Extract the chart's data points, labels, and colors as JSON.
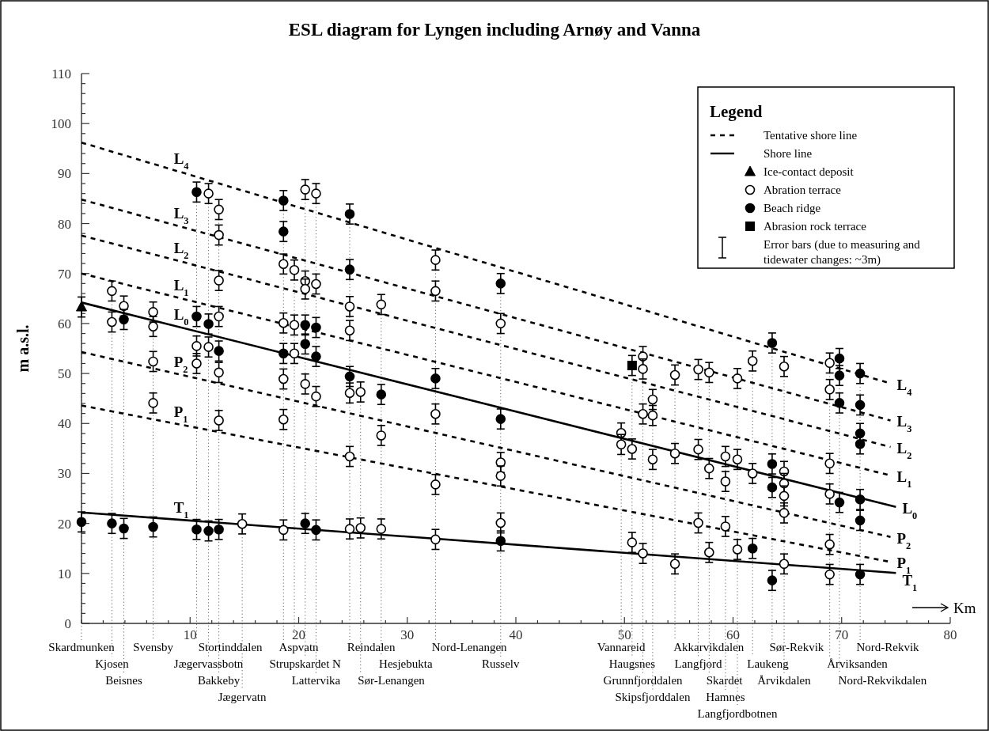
{
  "chart_data": {
    "type": "scatter",
    "title": "ESL diagram for Lyngen including Arnøy and Vanna",
    "xlabel": "Km",
    "ylabel": "m a.s.l.",
    "legend_title": "Legend",
    "legend": "top right",
    "annotations": [
      "Tentative shore line",
      "Shore line",
      "Error bars (due to measuring and tidewater changes: ~3m)"
    ],
    "xlim": [
      0,
      80
    ],
    "ylim": [
      0,
      110
    ],
    "xticks": [
      {
        "value": 0,
        "label": null
      },
      {
        "value": 2,
        "label": null
      },
      {
        "value": 4,
        "label": null
      },
      {
        "value": 6,
        "label": null
      },
      {
        "value": 8,
        "label": null
      },
      10,
      {
        "value": 12,
        "label": null
      },
      {
        "value": 14,
        "label": null
      },
      {
        "value": 16,
        "label": null
      },
      {
        "value": 18,
        "label": null
      },
      20,
      {
        "value": 22,
        "label": null
      },
      {
        "value": 24,
        "label": null
      },
      {
        "value": 26,
        "label": null
      },
      {
        "value": 28,
        "label": null
      },
      30,
      {
        "value": 32,
        "label": null
      },
      {
        "value": 34,
        "label": null
      },
      {
        "value": 36,
        "label": null
      },
      {
        "value": 38,
        "label": null
      },
      40,
      {
        "value": 42,
        "label": null
      },
      {
        "value": 44,
        "label": null
      },
      {
        "value": 46,
        "label": null
      },
      {
        "value": 48,
        "label": null
      },
      50,
      {
        "value": 52,
        "label": null
      },
      {
        "value": 54,
        "label": null
      },
      {
        "value": 56,
        "label": null
      },
      {
        "value": 58,
        "label": null
      },
      60,
      {
        "value": 62,
        "label": null
      },
      {
        "value": 64,
        "label": null
      },
      {
        "value": 66,
        "label": null
      },
      {
        "value": 68,
        "label": null
      },
      70,
      {
        "value": 72,
        "label": null
      },
      {
        "value": 74,
        "label": null
      },
      {
        "value": 76,
        "label": null
      },
      {
        "value": 78,
        "label": null
      },
      80
    ],
    "yticks": [
      0,
      {
        "value": 2,
        "label": null
      },
      {
        "value": 4,
        "label": null
      },
      {
        "value": 6,
        "label": null
      },
      {
        "value": 8,
        "label": null
      },
      10,
      {
        "value": 12,
        "label": null
      },
      {
        "value": 14,
        "label": null
      },
      {
        "value": 16,
        "label": null
      },
      {
        "value": 18,
        "label": null
      },
      20,
      {
        "value": 22,
        "label": null
      },
      {
        "value": 24,
        "label": null
      },
      {
        "value": 26,
        "label": null
      },
      {
        "value": 28,
        "label": null
      },
      30,
      {
        "value": 32,
        "label": null
      },
      {
        "value": 34,
        "label": null
      },
      {
        "value": 36,
        "label": null
      },
      {
        "value": 38,
        "label": null
      },
      40,
      {
        "value": 42,
        "label": null
      },
      {
        "value": 44,
        "label": null
      },
      {
        "value": 46,
        "label": null
      },
      {
        "value": 48,
        "label": null
      },
      50,
      {
        "value": 52,
        "label": null
      },
      {
        "value": 54,
        "label": null
      },
      {
        "value": 56,
        "label": null
      },
      {
        "value": 58,
        "label": null
      },
      60,
      {
        "value": 62,
        "label": null
      },
      {
        "value": 64,
        "label": null
      },
      {
        "value": 66,
        "label": null
      },
      {
        "value": 68,
        "label": null
      },
      70,
      {
        "value": 72,
        "label": null
      },
      {
        "value": 74,
        "label": null
      },
      {
        "value": 76,
        "label": null
      },
      {
        "value": 78,
        "label": null
      },
      80,
      {
        "value": 82,
        "label": null
      },
      {
        "value": 84,
        "label": null
      },
      {
        "value": 86,
        "label": null
      },
      {
        "value": 88,
        "label": null
      },
      90,
      {
        "value": 92,
        "label": null
      },
      {
        "value": 94,
        "label": null
      },
      {
        "value": 96,
        "label": null
      },
      {
        "value": 98,
        "label": null
      },
      100,
      {
        "value": 102,
        "label": null
      },
      {
        "value": 104,
        "label": null
      },
      {
        "value": 106,
        "label": null
      },
      {
        "value": 108,
        "label": null
      },
      110
    ],
    "series": [
      {
        "name": "L$_{4}$",
        "type": "line",
        "color": "#000000",
        "line_style": "dashed",
        "x": [
          0,
          74.5
        ],
        "values": [
          96.2,
          48.0
        ]
      },
      {
        "name": "L$_{3}$",
        "type": "line",
        "color": "#000000",
        "line_style": "dashed",
        "x": [
          0,
          74.5
        ],
        "values": [
          84.8,
          40.6
        ]
      },
      {
        "name": "L$_{2}$",
        "type": "line",
        "color": "#000000",
        "line_style": "dashed",
        "x": [
          0,
          74.5
        ],
        "values": [
          77.6,
          35.3
        ]
      },
      {
        "name": "L$_{1}$",
        "type": "line",
        "color": "#000000",
        "line_style": "dashed",
        "x": [
          0,
          74.5
        ],
        "values": [
          70.0,
          29.6
        ]
      },
      {
        "name": "L$_{0}$",
        "type": "line",
        "color": "#000000",
        "line_style": "solid",
        "x": [
          0,
          75
        ],
        "values": [
          64.2,
          23.3
        ]
      },
      {
        "name": "P$_{2}$",
        "type": "line",
        "color": "#000000",
        "line_style": "dashed",
        "x": [
          0,
          74.5
        ],
        "values": [
          54.3,
          17.3
        ]
      },
      {
        "name": "P$_{1}$",
        "type": "line",
        "color": "#000000",
        "line_style": "dashed",
        "x": [
          0,
          74.5
        ],
        "values": [
          43.6,
          12.3
        ]
      },
      {
        "name": "T$_{1}$",
        "type": "line",
        "color": "#000000",
        "line_style": "solid",
        "x": [
          0,
          75
        ],
        "values": [
          22.2,
          10.1
        ]
      },
      {
        "name": "Ice-contact deposit",
        "marker": "triangle",
        "color": "#000000",
        "x": [
          0
        ],
        "values": [
          63.3
        ],
        "errors": [
          2
        ]
      },
      {
        "name": "Abration terrace",
        "marker": "circle",
        "color": "#ffffff",
        "x": [
          2.8,
          2.8,
          3.9,
          6.6,
          6.6,
          6.6,
          6.6,
          10.6,
          10.6,
          11.7,
          11.7,
          12.65,
          12.65,
          12.65,
          12.65,
          12.65,
          12.65,
          14.8,
          18.6,
          18.6,
          18.6,
          18.6,
          18.6,
          19.6,
          19.6,
          19.6,
          20.6,
          20.6,
          20.6,
          20.6,
          21.6,
          21.6,
          21.6,
          24.7,
          24.7,
          24.7,
          24.7,
          24.7,
          25.7,
          25.7,
          27.6,
          27.6,
          27.6,
          32.6,
          32.6,
          32.6,
          32.6,
          32.6,
          38.6,
          38.6,
          38.6,
          38.6,
          49.7,
          49.7,
          50.7,
          50.7,
          51.7,
          51.7,
          51.7,
          51.7,
          52.6,
          52.6,
          52.6,
          54.65,
          54.65,
          54.65,
          56.8,
          56.8,
          56.8,
          57.8,
          57.8,
          57.8,
          59.3,
          59.3,
          59.3,
          60.4,
          60.4,
          60.4,
          61.8,
          61.8,
          64.7,
          64.7,
          64.7,
          64.7,
          64.7,
          64.7,
          68.9,
          68.9,
          68.9,
          68.9,
          68.9,
          68.9
        ],
        "values": [
          66.5,
          60.3,
          63.5,
          62.3,
          59.4,
          52.4,
          44.1,
          55.5,
          52.0,
          86.0,
          55.3,
          82.8,
          77.7,
          68.6,
          61.4,
          50.2,
          40.6,
          19.9,
          71.9,
          60.1,
          48.9,
          40.8,
          18.7,
          70.7,
          59.7,
          54.0,
          86.8,
          68.5,
          66.9,
          47.9,
          86.0,
          67.9,
          45.4,
          63.4,
          58.6,
          46.1,
          33.4,
          18.9,
          46.3,
          19.1,
          63.8,
          37.6,
          18.9,
          72.7,
          66.5,
          41.9,
          27.8,
          16.8,
          60.0,
          32.2,
          29.5,
          20.1,
          38.1,
          35.8,
          34.9,
          16.2,
          53.4,
          50.9,
          41.9,
          14.0,
          44.8,
          41.6,
          32.8,
          49.7,
          34.0,
          11.9,
          50.8,
          34.8,
          20.1,
          50.2,
          31.0,
          14.2,
          33.4,
          28.4,
          19.4,
          49.0,
          32.8,
          14.8,
          52.5,
          30.0,
          51.4,
          30.4,
          28.0,
          25.5,
          22.1,
          11.9,
          52.1,
          46.8,
          32.0,
          25.9,
          15.8,
          9.8
        ],
        "errors": [
          2,
          2,
          2,
          2,
          2,
          2,
          2,
          2,
          2,
          2,
          2,
          2,
          2,
          2,
          2,
          2,
          2,
          2,
          2,
          2,
          2,
          2,
          2,
          2,
          2,
          2,
          2,
          2,
          2,
          2,
          2,
          2,
          2,
          2,
          2,
          2,
          2,
          2,
          2,
          2,
          2,
          2,
          2,
          2,
          2,
          2,
          2,
          2,
          2,
          2,
          2,
          2,
          2,
          2,
          2,
          2,
          2,
          2,
          2,
          2,
          2,
          2,
          2,
          2,
          2,
          2,
          2,
          2,
          2,
          2,
          2,
          2,
          2,
          2,
          2,
          2,
          2,
          2,
          2,
          2,
          2,
          2,
          2,
          2,
          2,
          2,
          2,
          2,
          2,
          2,
          2,
          2
        ]
      },
      {
        "name": "Beach ridge",
        "marker": "circle",
        "color": "#000000",
        "x": [
          0,
          2.8,
          3.9,
          3.9,
          6.6,
          10.6,
          10.6,
          10.6,
          11.7,
          11.7,
          12.65,
          12.65,
          18.6,
          18.6,
          18.6,
          20.6,
          20.6,
          20.6,
          21.6,
          21.6,
          21.6,
          24.7,
          24.7,
          24.7,
          27.6,
          32.6,
          38.6,
          38.6,
          38.6,
          61.8,
          63.6,
          63.6,
          63.6,
          63.6,
          69.8,
          69.8,
          69.8,
          69.8,
          71.7,
          71.7,
          71.7,
          71.7,
          71.7,
          71.7,
          71.7
        ],
        "values": [
          20.3,
          20.0,
          60.8,
          19.0,
          19.3,
          86.3,
          61.4,
          18.8,
          59.9,
          18.5,
          54.5,
          18.8,
          84.6,
          78.4,
          54.0,
          59.7,
          55.9,
          20.0,
          59.2,
          53.4,
          18.7,
          81.9,
          70.8,
          49.4,
          45.8,
          49.0,
          68.0,
          40.9,
          16.5,
          15.0,
          56.1,
          31.9,
          27.2,
          8.6,
          53.0,
          49.6,
          44.1,
          24.2,
          50.0,
          43.7,
          38.0,
          35.9,
          24.8,
          20.6,
          9.8
        ],
        "errors": [
          2,
          2,
          2,
          2,
          2,
          2,
          2,
          2,
          2,
          2,
          2,
          2,
          2,
          2,
          2,
          2,
          2,
          2,
          2,
          2,
          2,
          2,
          2,
          2,
          2,
          2,
          2,
          2,
          2,
          2,
          2,
          2,
          2,
          2,
          2,
          2,
          2,
          2,
          2,
          2,
          2,
          2,
          2,
          2,
          2
        ]
      },
      {
        "name": "Abrasion rock terrace",
        "marker": "square",
        "color": "#000000",
        "x": [
          50.7
        ],
        "values": [
          51.6
        ],
        "errors": [
          2
        ]
      }
    ],
    "ref_lines": [
      {
        "axis": "x",
        "value": 0,
        "label": "Skardmunken",
        "line_style": "dotted"
      },
      {
        "axis": "x",
        "value": 2.8,
        "label": "Kjosen",
        "line_style": "dotted"
      },
      {
        "axis": "x",
        "value": 3.9,
        "label": "Beisnes",
        "line_style": "dotted"
      },
      {
        "axis": "x",
        "value": 6.6,
        "label": "Svensby",
        "line_style": "dotted"
      },
      {
        "axis": "x",
        "value": 10.6,
        "label": "Stortinddalen",
        "line_style": "dotted"
      },
      {
        "axis": "x",
        "value": 11.7,
        "label": "Jægervassbotn",
        "line_style": "dotted"
      },
      {
        "axis": "x",
        "value": 12.65,
        "label": "Bakkeby",
        "line_style": "dotted"
      },
      {
        "axis": "x",
        "value": 14.8,
        "label": "Jægervatn",
        "line_style": "dotted"
      },
      {
        "axis": "x",
        "value": 18.6,
        "label": "Aspvatn",
        "line_style": "dotted"
      },
      {
        "axis": "x",
        "value": 19.6,
        "label": null,
        "line_style": "dotted"
      },
      {
        "axis": "x",
        "value": 20.6,
        "label": "Strupskardet N",
        "line_style": "dotted"
      },
      {
        "axis": "x",
        "value": 21.6,
        "label": "Lattervika",
        "line_style": "dotted"
      },
      {
        "axis": "x",
        "value": 24.7,
        "label": "Reindalen",
        "line_style": "dotted"
      },
      {
        "axis": "x",
        "value": 25.7,
        "label": "Sør-Lenangen",
        "line_style": "dotted"
      },
      {
        "axis": "x",
        "value": 27.6,
        "label": "Hesjebukta",
        "line_style": "dotted"
      },
      {
        "axis": "x",
        "value": 32.6,
        "label": "Nord-Lenangen",
        "line_style": "dotted"
      },
      {
        "axis": "x",
        "value": 38.6,
        "label": "Russelv",
        "line_style": "dotted"
      },
      {
        "axis": "x",
        "value": 49.7,
        "label": "Vannareid",
        "line_style": "dotted"
      },
      {
        "axis": "x",
        "value": 50.7,
        "label": "Haugsnes",
        "line_style": "dotted"
      },
      {
        "axis": "x",
        "value": 51.7,
        "label": "Grunnfjorddalen",
        "line_style": "dotted"
      },
      {
        "axis": "x",
        "value": 52.6,
        "label": "Skipsfjorddalen",
        "line_style": "dotted"
      },
      {
        "axis": "x",
        "value": 54.65,
        "label": "Akkarvikdalen",
        "line_style": "dotted"
      },
      {
        "axis": "x",
        "value": 56.8,
        "label": "Langfjord",
        "line_style": "dotted"
      },
      {
        "axis": "x",
        "value": 57.8,
        "label": "Skardet",
        "line_style": "dotted"
      },
      {
        "axis": "x",
        "value": 59.3,
        "label": "Hamnes",
        "line_style": "dotted"
      },
      {
        "axis": "x",
        "value": 60.4,
        "label": "Langfjordbotnen",
        "line_style": "dotted"
      },
      {
        "axis": "x",
        "value": 61.8,
        "label": "Laukeng",
        "line_style": "dotted"
      },
      {
        "axis": "x",
        "value": 63.6,
        "label": "Sør-Rekvik",
        "line_style": "dotted"
      },
      {
        "axis": "x",
        "value": 64.7,
        "label": "Årvikdalen",
        "line_style": "dotted"
      },
      {
        "axis": "x",
        "value": 68.9,
        "label": "Årviksanden",
        "line_style": "dotted"
      },
      {
        "axis": "x",
        "value": 69.8,
        "label": "Nord-Rekvikdalen",
        "line_style": "dotted"
      },
      {
        "axis": "x",
        "value": 71.7,
        "label": "Nord-Rekvik",
        "line_style": "dotted"
      }
    ]
  }
}
